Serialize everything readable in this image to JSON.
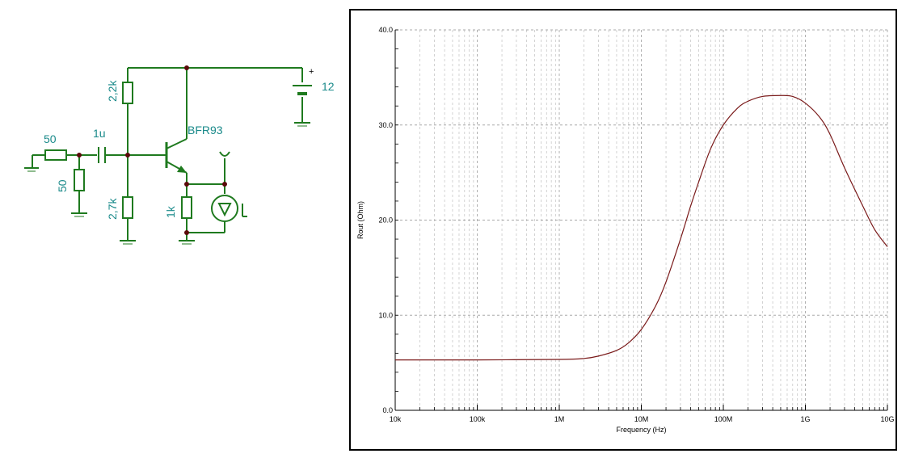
{
  "schematic": {
    "colors": {
      "wire": "#1f7a1f",
      "label": "#1a8a8a",
      "node": "#5a0a0a"
    },
    "labels": {
      "source_resistor": "50",
      "shunt_resistor": "50",
      "coupling_capacitor": "1u",
      "collector_resistor": "2,2k",
      "base_resistor": "2,7k",
      "emitter_resistor": "1k",
      "transistor": "BFR93",
      "supply_voltage": "12",
      "supply_polarity": "+"
    }
  },
  "chart_data": {
    "type": "line",
    "xlabel": "Frequency (Hz)",
    "ylabel": "Rout (Ohm)",
    "x_scale": "log",
    "xlim": [
      10000,
      10000000000
    ],
    "ylim": [
      0,
      40
    ],
    "grid": true,
    "line_color": "#7a1a1a",
    "x_ticks": [
      {
        "value": 10000,
        "label": "10k"
      },
      {
        "value": 100000,
        "label": "100k"
      },
      {
        "value": 1000000,
        "label": "1M"
      },
      {
        "value": 10000000,
        "label": "10M"
      },
      {
        "value": 100000000,
        "label": "100M"
      },
      {
        "value": 1000000000,
        "label": "1G"
      },
      {
        "value": 10000000000,
        "label": "10G"
      }
    ],
    "y_ticks": [
      {
        "value": 0,
        "label": "0.0"
      },
      {
        "value": 10,
        "label": "10.0"
      },
      {
        "value": 20,
        "label": "20.0"
      },
      {
        "value": 30,
        "label": "30.0"
      },
      {
        "value": 40,
        "label": "40.0"
      }
    ],
    "series": [
      {
        "x": [
          10000,
          100000,
          1000000,
          2000000,
          3000000,
          5000000,
          7000000,
          10000000,
          15000000,
          20000000,
          30000000,
          40000000,
          50000000,
          70000000,
          100000000,
          150000000,
          200000000,
          300000000,
          500000000,
          700000000,
          1000000000,
          1500000000,
          2000000000,
          3000000000,
          5000000000,
          7000000000,
          10000000000
        ],
        "y": [
          5.3,
          5.3,
          5.35,
          5.45,
          5.7,
          6.3,
          7.1,
          8.5,
          11.0,
          13.5,
          18.0,
          21.5,
          24.0,
          27.5,
          30.0,
          31.8,
          32.5,
          33.0,
          33.1,
          33.0,
          32.3,
          30.8,
          29.0,
          25.5,
          21.5,
          19.0,
          17.2
        ]
      }
    ]
  }
}
